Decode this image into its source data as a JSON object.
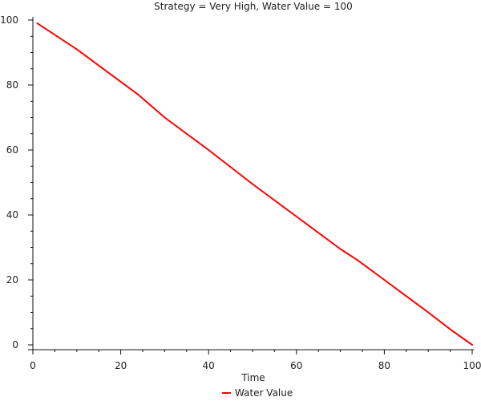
{
  "chart_data": {
    "type": "line",
    "title": "Strategy = Very High, Water Value = 100",
    "xlabel": "Time",
    "ylabel": "",
    "xlim": [
      0,
      100
    ],
    "ylim": [
      0,
      100
    ],
    "x_ticks": [
      0,
      20,
      40,
      60,
      80,
      100
    ],
    "y_ticks": [
      0,
      20,
      40,
      60,
      80,
      100
    ],
    "grid": false,
    "legend_position": "bottom-center",
    "series": [
      {
        "name": "Water Value",
        "color": "#ff0000",
        "x": [
          1,
          10,
          20,
          24,
          30,
          40,
          50,
          60,
          70,
          74,
          76,
          80,
          90,
          95,
          100
        ],
        "y": [
          99,
          91,
          81,
          77,
          70,
          60,
          49.5,
          39.5,
          29.5,
          26,
          24,
          20,
          10,
          4.8,
          0
        ]
      }
    ]
  }
}
